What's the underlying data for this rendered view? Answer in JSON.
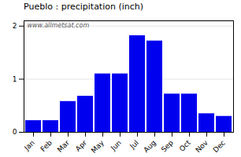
{
  "chart_data": {
    "type": "bar",
    "title": "Pueblo : precipitation (inch)",
    "categories": [
      "Jan",
      "Feb",
      "Mar",
      "Apr",
      "May",
      "Jun",
      "Jul",
      "Aug",
      "Sep",
      "Oct",
      "Nov",
      "Dec"
    ],
    "values": [
      0.22,
      0.22,
      0.58,
      0.68,
      1.1,
      1.1,
      1.82,
      1.72,
      0.72,
      0.72,
      0.35,
      0.3
    ],
    "color": "#0000EE",
    "ylim": [
      0,
      2.1
    ],
    "yticks": [
      0,
      1,
      2
    ],
    "grid": true,
    "annotations": [
      "www.allmetsat.com"
    ]
  }
}
